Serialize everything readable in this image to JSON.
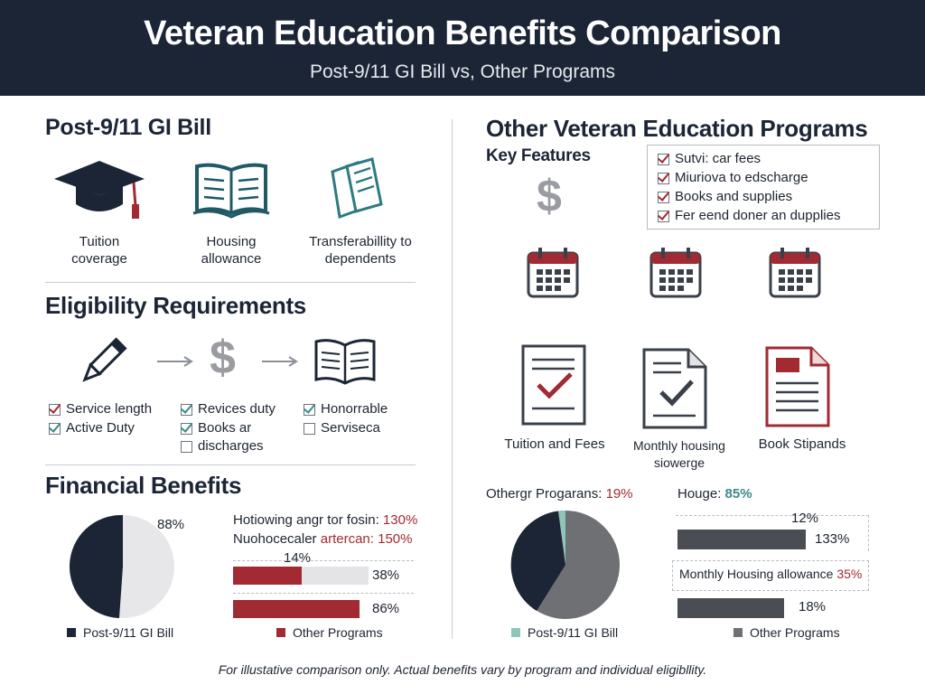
{
  "header": {
    "title": "Veteran Education Benefits Comparison",
    "subtitle": "Post-9/11 GI Bill vs, Other Programs"
  },
  "left": {
    "title": "Post-9/11 GI Bill",
    "features": [
      {
        "label": "Tuition\ncoverage",
        "icon": "graduation-cap-icon"
      },
      {
        "label": "Housing\nallowance",
        "icon": "open-book-icon"
      },
      {
        "label": "Transferabillity to\ndependents",
        "icon": "documents-icon"
      }
    ],
    "eligibility": {
      "title": "Eligibility Requirements",
      "icons": [
        "pencil-icon",
        "arrow-icon",
        "dollar-icon",
        "arrow-icon",
        "open-book-icon"
      ],
      "col1": [
        {
          "label": "Service length",
          "checked": true,
          "color": "red"
        },
        {
          "label": "Active Duty",
          "checked": true,
          "color": "teal"
        }
      ],
      "col2": [
        {
          "label": "Revices duty",
          "checked": true,
          "color": "teal"
        },
        {
          "label": "Books ar",
          "checked": true,
          "color": "teal"
        },
        {
          "label": "discharges",
          "checked": false,
          "color": "none"
        }
      ],
      "col3": [
        {
          "label": "Honorrable",
          "checked": true,
          "color": "teal"
        },
        {
          "label": "Serviseca",
          "checked": false,
          "color": "none"
        }
      ]
    },
    "financial": {
      "title": "Financial Benefits",
      "pie_label": "88%",
      "bar_text_1": "Hotiowing angr tor fosin:",
      "bar_val_1": "130%",
      "bar_text_2": "Nuohocecaler",
      "bar_text_2b": "artercan:",
      "bar_val_2": "150%",
      "bar_a_top": "14%",
      "bar_a_right": "38%",
      "bar_b_right": "86%",
      "legend_a": "Post-9/11 GI Bill",
      "legend_b": "Other Programs"
    }
  },
  "right": {
    "title": "Other Veteran Education Programs",
    "key_features_title": "Key Features",
    "key_features": [
      "Sutvi: car fees",
      "Miuriova to edscharge",
      "Books and supplies",
      "Fer eend doner an dupplies"
    ],
    "doc_labels": [
      "Tuition and Fees",
      "Monthly housing siowerge",
      "Book Stipands"
    ],
    "financial": {
      "pie_caption": "Othergr Progarans:",
      "pie_caption_val": "19%",
      "hou_label": "Houge:",
      "hou_val": "85%",
      "bar1_top": "12%",
      "bar1_right": "133%",
      "mha_label": "Monthly Housing allowance",
      "mha_val": "35%",
      "bar2_right": "18%",
      "legend_a": "Post-9/11 GI Bill",
      "legend_b": "Other Programs"
    }
  },
  "colors": {
    "navy": "#1b2536",
    "red": "#a12a33",
    "teal": "#3d8a8a",
    "gray": "#6f7074"
  },
  "footer": "For illustative comparison only. Actual benefits vary by program and individual eligibllity."
}
